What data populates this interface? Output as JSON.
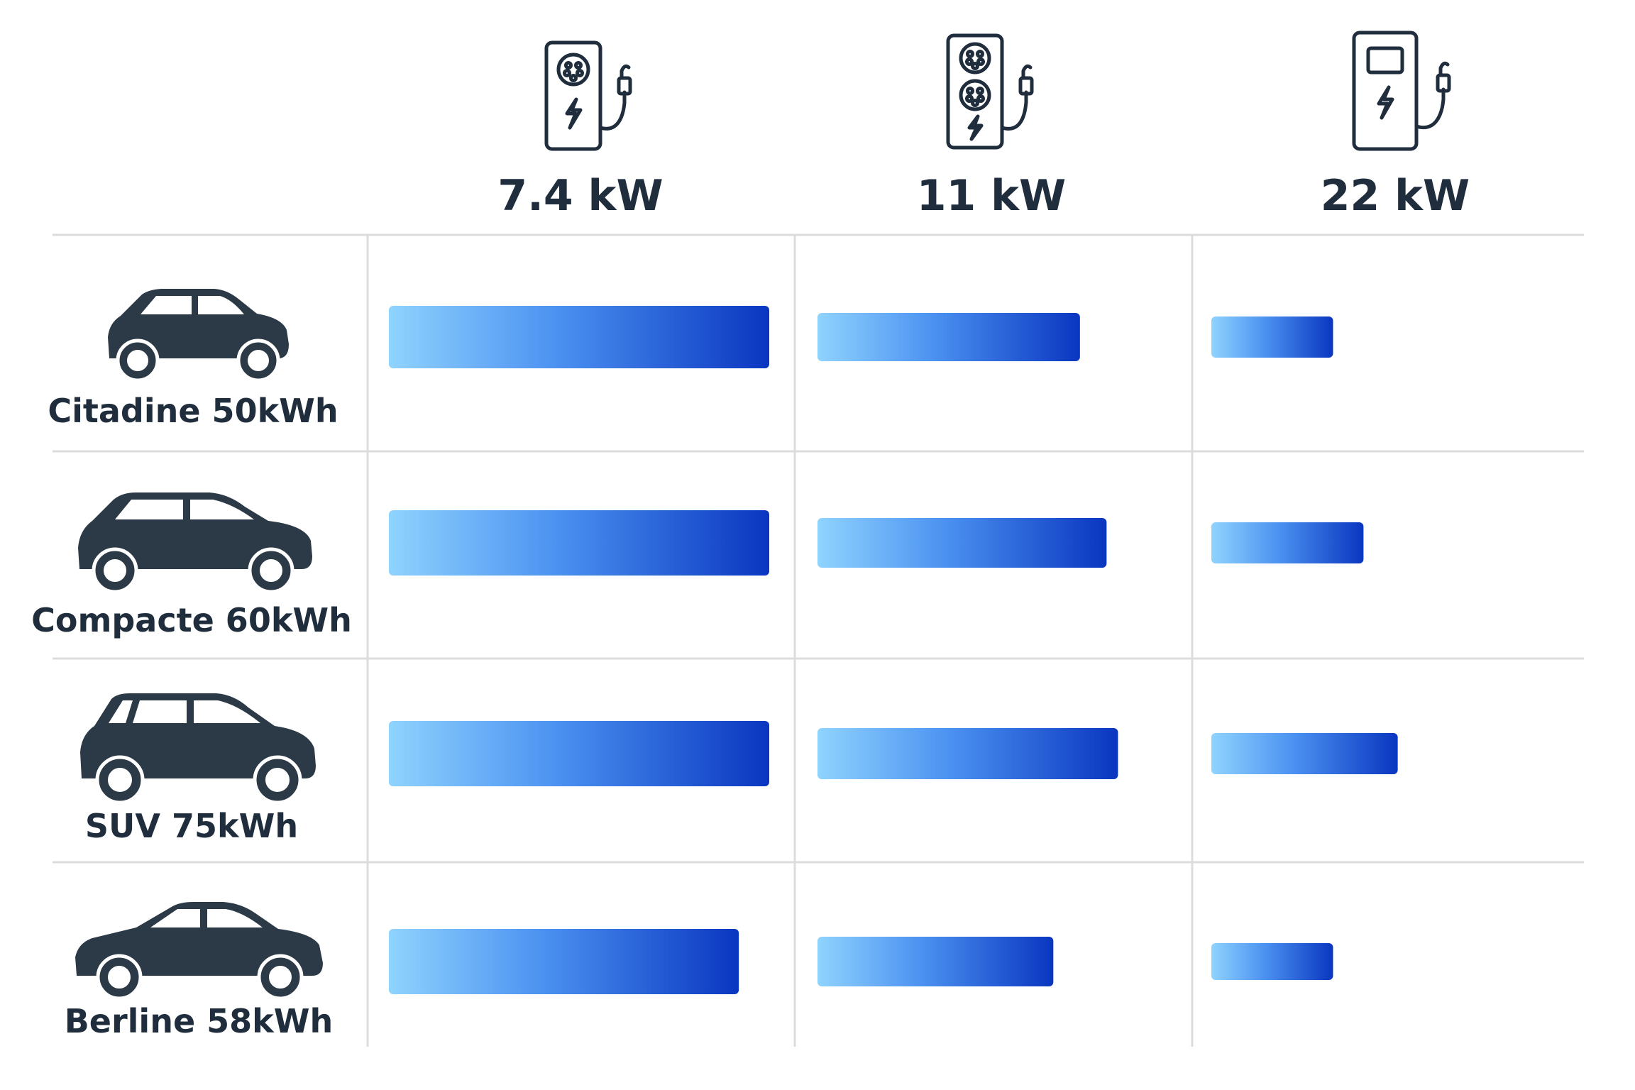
{
  "chart_data": {
    "type": "table",
    "columns": [
      {
        "label": "7.4 kW",
        "icon": "single-socket-charger-icon"
      },
      {
        "label": "11 kW",
        "icon": "dual-socket-charger-icon"
      },
      {
        "label": "22 kW",
        "icon": "screen-charger-icon"
      }
    ],
    "rows": [
      {
        "label": "Citadine 50kWh",
        "icon": "hatchback-car-icon",
        "values": [
          1.0,
          0.69,
          0.32
        ]
      },
      {
        "label": "Compacte 60kWh",
        "icon": "compact-car-icon",
        "values": [
          1.0,
          0.76,
          0.4
        ]
      },
      {
        "label": "SUV 75kWh",
        "icon": "suv-car-icon",
        "values": [
          1.0,
          0.79,
          0.49
        ]
      },
      {
        "label": "Berline 58kWh",
        "icon": "sedan-car-icon",
        "values": [
          0.92,
          0.62,
          0.32
        ]
      }
    ],
    "value_unit": "relative bar length (fraction of longest bar)",
    "colors": {
      "bar_start": "#8fd3fe",
      "bar_mid": "#4a90f0",
      "bar_end": "#0a36c0"
    },
    "grid": true
  }
}
